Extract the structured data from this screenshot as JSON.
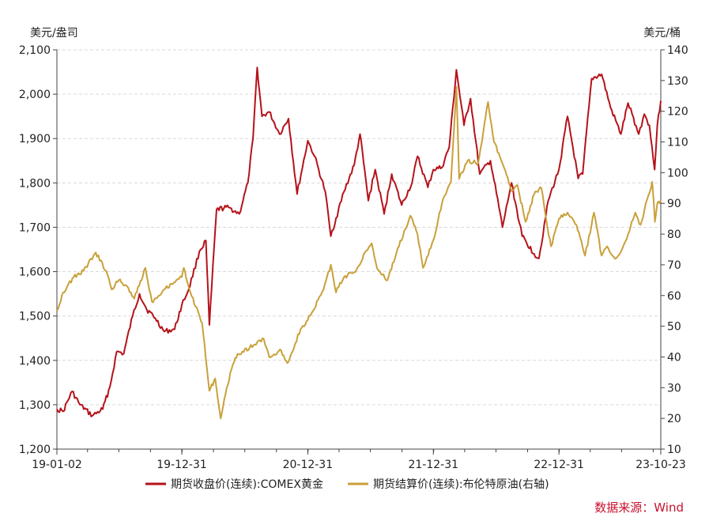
{
  "chart_data": {
    "type": "line",
    "left_axis_unit": "美元/盎司",
    "right_axis_unit": "美元/桶",
    "left_axis": {
      "min": 1200,
      "max": 2100,
      "ticks": [
        "1,200",
        "1,300",
        "1,400",
        "1,500",
        "1,600",
        "1,700",
        "1,800",
        "1,900",
        "2,000",
        "2,100"
      ]
    },
    "right_axis": {
      "min": 10,
      "max": 140,
      "ticks": [
        "10",
        "20",
        "30",
        "40",
        "50",
        "60",
        "70",
        "80",
        "90",
        "100",
        "110",
        "120",
        "130",
        "140"
      ]
    },
    "x_ticks": [
      "19-01-02",
      "19-12-31",
      "20-12-31",
      "21-12-31",
      "22-12-31",
      "23-10-23"
    ],
    "x_range": [
      "2019-01-02",
      "2023-10-23"
    ],
    "grid": true,
    "legend_position": "bottom",
    "source": "数据来源：Wind",
    "colors": {
      "gold": "#b5121b",
      "oil": "#c9a03a",
      "grid": "#d9d9d9"
    },
    "series": [
      {
        "name": "期货收盘价(连续):COMEX黄金",
        "axis": "left",
        "points": [
          [
            "2019-01-02",
            1290
          ],
          [
            "2019-01-20",
            1285
          ],
          [
            "2019-02-15",
            1330
          ],
          [
            "2019-03-10",
            1300
          ],
          [
            "2019-04-15",
            1275
          ],
          [
            "2019-05-15",
            1290
          ],
          [
            "2019-06-05",
            1340
          ],
          [
            "2019-06-25",
            1420
          ],
          [
            "2019-07-15",
            1415
          ],
          [
            "2019-08-10",
            1500
          ],
          [
            "2019-08-30",
            1550
          ],
          [
            "2019-09-20",
            1515
          ],
          [
            "2019-10-15",
            1495
          ],
          [
            "2019-11-10",
            1465
          ],
          [
            "2019-12-10",
            1470
          ],
          [
            "2019-12-31",
            1525
          ],
          [
            "2020-01-20",
            1560
          ],
          [
            "2020-02-20",
            1645
          ],
          [
            "2020-03-10",
            1670
          ],
          [
            "2020-03-20",
            1480
          ],
          [
            "2020-04-10",
            1740
          ],
          [
            "2020-05-15",
            1745
          ],
          [
            "2020-06-15",
            1730
          ],
          [
            "2020-07-10",
            1800
          ],
          [
            "2020-07-25",
            1900
          ],
          [
            "2020-08-06",
            2060
          ],
          [
            "2020-08-20",
            1950
          ],
          [
            "2020-09-10",
            1960
          ],
          [
            "2020-10-10",
            1910
          ],
          [
            "2020-11-05",
            1945
          ],
          [
            "2020-11-30",
            1775
          ],
          [
            "2020-12-31",
            1895
          ],
          [
            "2021-01-20",
            1860
          ],
          [
            "2021-02-20",
            1780
          ],
          [
            "2021-03-08",
            1680
          ],
          [
            "2021-04-15",
            1780
          ],
          [
            "2021-05-15",
            1840
          ],
          [
            "2021-06-01",
            1910
          ],
          [
            "2021-06-25",
            1760
          ],
          [
            "2021-07-15",
            1830
          ],
          [
            "2021-08-10",
            1730
          ],
          [
            "2021-09-01",
            1820
          ],
          [
            "2021-09-30",
            1750
          ],
          [
            "2021-10-30",
            1800
          ],
          [
            "2021-11-15",
            1860
          ],
          [
            "2021-12-15",
            1790
          ],
          [
            "2021-12-31",
            1830
          ],
          [
            "2022-01-25",
            1835
          ],
          [
            "2022-02-15",
            1880
          ],
          [
            "2022-03-08",
            2055
          ],
          [
            "2022-03-30",
            1930
          ],
          [
            "2022-04-18",
            1990
          ],
          [
            "2022-05-15",
            1820
          ],
          [
            "2022-06-15",
            1850
          ],
          [
            "2022-07-20",
            1700
          ],
          [
            "2022-08-15",
            1800
          ],
          [
            "2022-09-15",
            1680
          ],
          [
            "2022-10-20",
            1640
          ],
          [
            "2022-11-03",
            1630
          ],
          [
            "2022-11-30",
            1760
          ],
          [
            "2022-12-31",
            1830
          ],
          [
            "2023-01-25",
            1950
          ],
          [
            "2023-02-25",
            1810
          ],
          [
            "2023-03-10",
            1820
          ],
          [
            "2023-04-05",
            2035
          ],
          [
            "2023-05-04",
            2045
          ],
          [
            "2023-05-30",
            1970
          ],
          [
            "2023-06-29",
            1910
          ],
          [
            "2023-07-20",
            1980
          ],
          [
            "2023-08-20",
            1910
          ],
          [
            "2023-09-05",
            1955
          ],
          [
            "2023-09-20",
            1930
          ],
          [
            "2023-10-05",
            1830
          ],
          [
            "2023-10-13",
            1930
          ],
          [
            "2023-10-23",
            1985
          ]
        ]
      },
      {
        "name": "期货结算价(连续):布伦特原油(右轴)",
        "axis": "right",
        "points": [
          [
            "2019-01-02",
            55
          ],
          [
            "2019-01-20",
            61
          ],
          [
            "2019-02-20",
            66
          ],
          [
            "2019-03-20",
            68
          ],
          [
            "2019-04-25",
            74
          ],
          [
            "2019-05-25",
            68
          ],
          [
            "2019-06-10",
            62
          ],
          [
            "2019-07-01",
            65
          ],
          [
            "2019-07-25",
            63
          ],
          [
            "2019-08-15",
            59
          ],
          [
            "2019-09-16",
            69
          ],
          [
            "2019-10-05",
            58
          ],
          [
            "2019-11-10",
            62
          ],
          [
            "2019-12-15",
            65
          ],
          [
            "2019-12-31",
            66
          ],
          [
            "2020-01-06",
            69
          ],
          [
            "2020-01-25",
            61
          ],
          [
            "2020-02-28",
            51
          ],
          [
            "2020-03-20",
            29
          ],
          [
            "2020-04-06",
            33
          ],
          [
            "2020-04-22",
            20
          ],
          [
            "2020-05-20",
            35
          ],
          [
            "2020-06-10",
            41
          ],
          [
            "2020-07-15",
            43
          ],
          [
            "2020-08-25",
            46
          ],
          [
            "2020-09-10",
            40
          ],
          [
            "2020-10-15",
            42
          ],
          [
            "2020-11-02",
            38
          ],
          [
            "2020-12-10",
            49
          ],
          [
            "2020-12-31",
            52
          ],
          [
            "2021-01-15",
            55
          ],
          [
            "2021-02-15",
            62
          ],
          [
            "2021-03-08",
            70
          ],
          [
            "2021-03-23",
            61
          ],
          [
            "2021-04-15",
            66
          ],
          [
            "2021-05-20",
            68
          ],
          [
            "2021-06-15",
            74
          ],
          [
            "2021-07-05",
            77
          ],
          [
            "2021-07-20",
            69
          ],
          [
            "2021-08-20",
            65
          ],
          [
            "2021-09-15",
            74
          ],
          [
            "2021-10-25",
            86
          ],
          [
            "2021-11-15",
            80
          ],
          [
            "2021-12-01",
            69
          ],
          [
            "2021-12-31",
            78
          ],
          [
            "2022-01-25",
            90
          ],
          [
            "2022-02-20",
            97
          ],
          [
            "2022-03-08",
            128
          ],
          [
            "2022-03-16",
            98
          ],
          [
            "2022-04-10",
            104
          ],
          [
            "2022-05-10",
            103
          ],
          [
            "2022-06-08",
            123
          ],
          [
            "2022-06-25",
            110
          ],
          [
            "2022-07-20",
            103
          ],
          [
            "2022-08-15",
            94
          ],
          [
            "2022-09-01",
            96
          ],
          [
            "2022-09-25",
            84
          ],
          [
            "2022-10-20",
            93
          ],
          [
            "2022-11-10",
            95
          ],
          [
            "2022-11-25",
            84
          ],
          [
            "2022-12-08",
            76
          ],
          [
            "2022-12-31",
            85
          ],
          [
            "2023-01-25",
            87
          ],
          [
            "2023-02-20",
            83
          ],
          [
            "2023-03-17",
            73
          ],
          [
            "2023-04-12",
            87
          ],
          [
            "2023-05-04",
            73
          ],
          [
            "2023-05-20",
            76
          ],
          [
            "2023-06-12",
            72
          ],
          [
            "2023-06-28",
            74
          ],
          [
            "2023-07-20",
            80
          ],
          [
            "2023-08-10",
            87
          ],
          [
            "2023-08-25",
            83
          ],
          [
            "2023-09-28",
            97
          ],
          [
            "2023-10-06",
            84
          ],
          [
            "2023-10-13",
            90
          ],
          [
            "2023-10-23",
            91
          ]
        ]
      }
    ]
  }
}
